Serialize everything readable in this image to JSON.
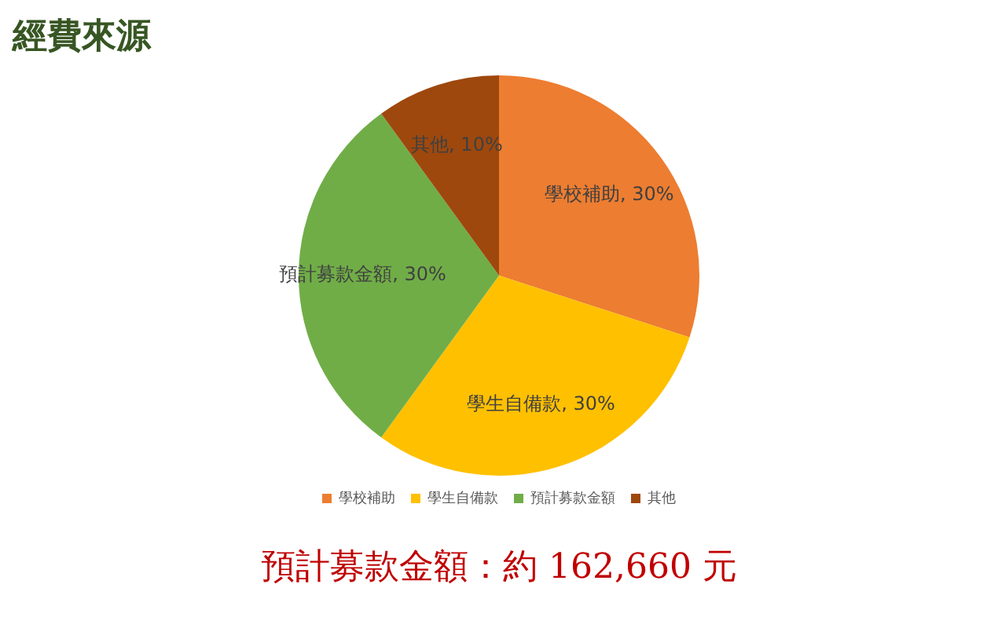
{
  "chart_data": {
    "type": "pie",
    "title": "經費來源",
    "categories": [
      "學校補助",
      "學生自備款",
      "預計募款金額",
      "其他"
    ],
    "values": [
      30,
      30,
      30,
      10
    ],
    "colors": [
      "#ed7d31",
      "#ffc000",
      "#70ad47",
      "#9e480e"
    ],
    "value_labels": [
      "學校補助, 30%",
      "學生自備款, 30%",
      "預計募款金額, 30%",
      "其他, 10%"
    ],
    "legend": "bottom",
    "annotations": [
      "預計募款金額：約 162,660 元"
    ]
  }
}
